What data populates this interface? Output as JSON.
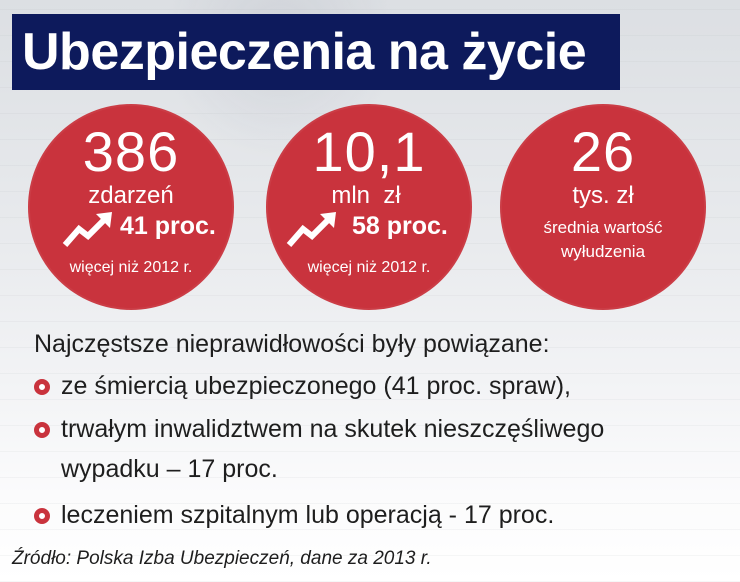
{
  "title": "Ubezpieczenia na życie",
  "stats": [
    {
      "value": "386",
      "unit": "zdarzeń",
      "change": "41 proc.",
      "note": "więcej niż 2012 r."
    },
    {
      "value": "10,1",
      "unit": "mln  zł",
      "change": "58 proc.",
      "note": "więcej niż 2012 r."
    },
    {
      "value": "26",
      "unit": "tys. zł",
      "desc_line1": "średnia wartość",
      "desc_line2": "wyłudzenia"
    }
  ],
  "list": {
    "heading": "Najczęstsze nieprawidłowości były powiązane:",
    "items": [
      "ze śmiercią ubezpieczonego (41 proc. spraw),",
      "trwałym inwalidztwem na skutek nieszczęśliwego",
      "leczeniem szpitalnym lub operacją - 17 proc."
    ],
    "item2_cont": "wypadku – 17 proc."
  },
  "source": "Źródło: Polska Izba Ubezpieczeń, dane za 2013 r.",
  "colors": {
    "accent": "#c9333d",
    "title_bg": "#0d1a5c"
  },
  "icons": [
    "trend-up-arrow-icon",
    "bullet-ring-icon"
  ]
}
